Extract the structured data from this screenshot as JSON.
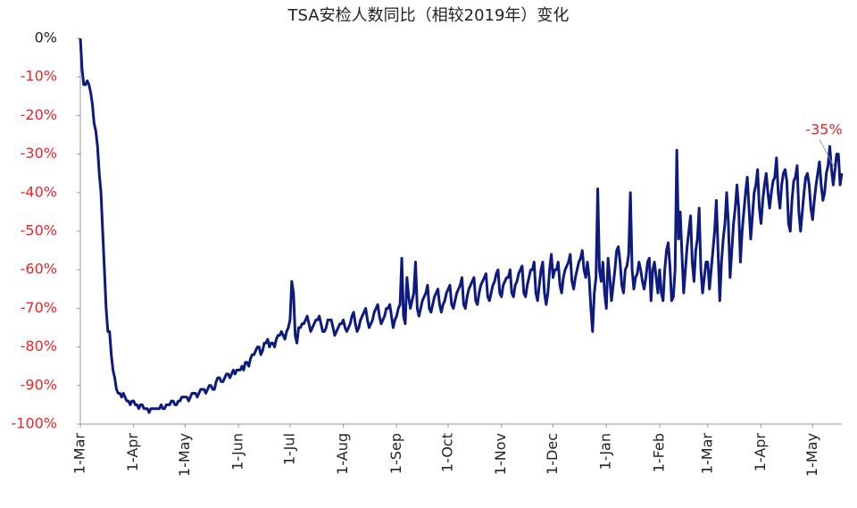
{
  "chart_data": {
    "type": "line",
    "title": "TSA安检人数同比（相较2019年）变化",
    "categories": [
      "1-Mar",
      null,
      null,
      null,
      null,
      null,
      null,
      null,
      null,
      null,
      null,
      null,
      null,
      null,
      null,
      null,
      null,
      null,
      null,
      null,
      null,
      null,
      null,
      null,
      null,
      null,
      null,
      null,
      null,
      null,
      null,
      "1-Apr",
      null,
      null,
      null,
      null,
      null,
      null,
      null,
      null,
      null,
      null,
      null,
      null,
      null,
      null,
      null,
      null,
      null,
      null,
      null,
      null,
      null,
      null,
      null,
      null,
      null,
      null,
      null,
      null,
      null,
      "1-May",
      null,
      null,
      null,
      null,
      null,
      null,
      null,
      null,
      null,
      null,
      null,
      null,
      null,
      null,
      null,
      null,
      null,
      null,
      null,
      null,
      null,
      null,
      null,
      null,
      null,
      null,
      null,
      null,
      null,
      null,
      "1-Jun",
      null,
      null,
      null,
      null,
      null,
      null,
      null,
      null,
      null,
      null,
      null,
      null,
      null,
      null,
      null,
      null,
      null,
      null,
      null,
      null,
      null,
      null,
      null,
      null,
      null,
      null,
      null,
      null,
      null,
      "1-Jul",
      null,
      null,
      null,
      null,
      null,
      null,
      null,
      null,
      null,
      null,
      null,
      null,
      null,
      null,
      null,
      null,
      null,
      null,
      null,
      null,
      null,
      null,
      null,
      null,
      null,
      null,
      null,
      null,
      null,
      null,
      "1-Aug",
      null,
      null,
      null,
      null,
      null,
      null,
      null,
      null,
      null,
      null,
      null,
      null,
      null,
      null,
      null,
      null,
      null,
      null,
      null,
      null,
      null,
      null,
      null,
      null,
      null,
      null,
      null,
      null,
      null,
      null,
      "1-Sep",
      null,
      null,
      null,
      null,
      null,
      null,
      null,
      null,
      null,
      null,
      null,
      null,
      null,
      null,
      null,
      null,
      null,
      null,
      null,
      null,
      null,
      null,
      null,
      null,
      null,
      null,
      null,
      null,
      null,
      "1-Oct",
      null,
      null,
      null,
      null,
      null,
      null,
      null,
      null,
      null,
      null,
      null,
      null,
      null,
      null,
      null,
      null,
      null,
      null,
      null,
      null,
      null,
      null,
      null,
      null,
      null,
      null,
      null,
      null,
      null,
      null,
      "1-Nov",
      null,
      null,
      null,
      null,
      null,
      null,
      null,
      null,
      null,
      null,
      null,
      null,
      null,
      null,
      null,
      null,
      null,
      null,
      null,
      null,
      null,
      null,
      null,
      null,
      null,
      null,
      null,
      null,
      null,
      "1-Dec",
      null,
      null,
      null,
      null,
      null,
      null,
      null,
      null,
      null,
      null,
      null,
      null,
      null,
      null,
      null,
      null,
      null,
      null,
      null,
      null,
      null,
      null,
      null,
      null,
      null,
      null,
      null,
      null,
      null,
      null,
      "1-Jan",
      null,
      null,
      null,
      null,
      null,
      null,
      null,
      null,
      null,
      null,
      null,
      null,
      null,
      null,
      null,
      null,
      null,
      null,
      null,
      null,
      null,
      null,
      null,
      null,
      null,
      null,
      null,
      null,
      null,
      null,
      "1-Feb",
      null,
      null,
      null,
      null,
      null,
      null,
      null,
      null,
      null,
      null,
      null,
      null,
      null,
      null,
      null,
      null,
      null,
      null,
      null,
      null,
      null,
      null,
      null,
      null,
      null,
      null,
      null,
      "1-Mar",
      null,
      null,
      null,
      null,
      null,
      null,
      null,
      null,
      null,
      null,
      null,
      null,
      null,
      null,
      null,
      null,
      null,
      null,
      null,
      null,
      null,
      null,
      null,
      null,
      null,
      null,
      null,
      null,
      null,
      null,
      "1-Apr",
      null,
      null,
      null,
      null,
      null,
      null,
      null,
      null,
      null,
      null,
      null,
      null,
      null,
      null,
      null,
      null,
      null,
      null,
      null,
      null,
      null,
      null,
      null,
      null,
      null,
      null,
      null,
      null,
      null,
      "1-May",
      null,
      null,
      null,
      null,
      null,
      null,
      null,
      null,
      null,
      null,
      null,
      null,
      null,
      null,
      null,
      null,
      null
    ],
    "series": [
      {
        "color": "#0d1a7e",
        "values": [
          0,
          -8,
          -12,
          -12,
          -11,
          -12,
          -14,
          -17,
          -22,
          -24,
          -28,
          -35,
          -40,
          -50,
          -60,
          -70,
          -76,
          -76,
          -82,
          -86,
          -88,
          -91,
          -92,
          -92,
          -93,
          -92,
          -93,
          -94,
          -94,
          -95,
          -94,
          -94,
          -95,
          -95,
          -96,
          -95,
          -95,
          -96,
          -96,
          -96,
          -97,
          -96,
          -96,
          -96,
          -96,
          -96,
          -96,
          -95,
          -96,
          -96,
          -95,
          -95,
          -95,
          -94,
          -94,
          -95,
          -95,
          -94,
          -94,
          -93,
          -93,
          -93,
          -93,
          -94,
          -93,
          -92,
          -92,
          -92,
          -93,
          -92,
          -91,
          -91,
          -91,
          -92,
          -91,
          -90,
          -90,
          -91,
          -91,
          -89,
          -88,
          -88,
          -89,
          -89,
          -88,
          -87,
          -87,
          -88,
          -87,
          -86,
          -87,
          -86,
          -86,
          -86,
          -85,
          -86,
          -84,
          -84,
          -85,
          -83,
          -82,
          -82,
          -81,
          -80,
          -80,
          -82,
          -81,
          -79,
          -79,
          -78,
          -80,
          -79,
          -79,
          -80,
          -78,
          -77,
          -77,
          -76,
          -77,
          -78,
          -76,
          -75,
          -73,
          -63,
          -66,
          -77,
          -79,
          -75,
          -75,
          -74,
          -74,
          -73,
          -72,
          -74,
          -76,
          -75,
          -74,
          -73,
          -73,
          -72,
          -74,
          -76,
          -76,
          -75,
          -73,
          -73,
          -73,
          -75,
          -77,
          -76,
          -75,
          -74,
          -74,
          -73,
          -75,
          -76,
          -75,
          -74,
          -72,
          -71,
          -74,
          -76,
          -75,
          -73,
          -72,
          -71,
          -70,
          -73,
          -75,
          -74,
          -73,
          -71,
          -70,
          -69,
          -72,
          -74,
          -73,
          -72,
          -70,
          -70,
          -69,
          -72,
          -75,
          -73,
          -72,
          -70,
          -69,
          -57,
          -72,
          -74,
          -62,
          -67,
          -70,
          -68,
          -66,
          -58,
          -70,
          -72,
          -70,
          -68,
          -67,
          -66,
          -64,
          -70,
          -71,
          -69,
          -67,
          -66,
          -65,
          -69,
          -71,
          -69,
          -68,
          -66,
          -65,
          -64,
          -69,
          -70,
          -68,
          -66,
          -65,
          -64,
          -62,
          -69,
          -70,
          -67,
          -65,
          -64,
          -63,
          -62,
          -68,
          -69,
          -66,
          -64,
          -63,
          -62,
          -61,
          -67,
          -68,
          -66,
          -64,
          -63,
          -61,
          -60,
          -66,
          -67,
          -64,
          -63,
          -62,
          -62,
          -60,
          -66,
          -67,
          -64,
          -63,
          -61,
          -60,
          -59,
          -66,
          -67,
          -64,
          -62,
          -60,
          -60,
          -58,
          -66,
          -68,
          -64,
          -60,
          -58,
          -66,
          -69,
          -66,
          -60,
          -56,
          -62,
          -60,
          -60,
          -58,
          -64,
          -66,
          -62,
          -60,
          -59,
          -58,
          -56,
          -63,
          -65,
          -62,
          -60,
          -58,
          -57,
          -55,
          -60,
          -62,
          -58,
          -62,
          -70,
          -76,
          -66,
          -62,
          -39,
          -60,
          -63,
          -58,
          -66,
          -70,
          -57,
          -62,
          -68,
          -64,
          -60,
          -55,
          -54,
          -58,
          -64,
          -66,
          -60,
          -59,
          -56,
          -40,
          -60,
          -65,
          -62,
          -61,
          -58,
          -60,
          -63,
          -65,
          -62,
          -58,
          -57,
          -68,
          -60,
          -58,
          -62,
          -66,
          -60,
          -66,
          -68,
          -60,
          -55,
          -53,
          -59,
          -68,
          -67,
          -60,
          -29,
          -52,
          -45,
          -56,
          -66,
          -60,
          -54,
          -50,
          -46,
          -58,
          -63,
          -55,
          -52,
          -44,
          -60,
          -66,
          -62,
          -58,
          -58,
          -65,
          -60,
          -55,
          -50,
          -42,
          -55,
          -68,
          -58,
          -52,
          -48,
          -40,
          -48,
          -62,
          -55,
          -48,
          -44,
          -38,
          -44,
          -58,
          -50,
          -45,
          -40,
          -36,
          -44,
          -52,
          -46,
          -40,
          -38,
          -34,
          -44,
          -48,
          -42,
          -38,
          -35,
          -40,
          -44,
          -40,
          -37,
          -36,
          -31,
          -40,
          -44,
          -38,
          -35,
          -34,
          -37,
          -48,
          -50,
          -42,
          -37,
          -36,
          -33,
          -45,
          -50,
          -45,
          -40,
          -36,
          -35,
          -38,
          -44,
          -47,
          -42,
          -38,
          -35,
          -32,
          -38,
          -42,
          -40,
          -35,
          -33,
          -28,
          -34,
          -38,
          -34,
          -30,
          -30,
          -38,
          -35
        ]
      }
    ],
    "annotation": "-35%",
    "ylim": [
      -100,
      0
    ],
    "yticks": [
      {
        "value": 0,
        "label": "0%"
      },
      {
        "value": -10,
        "label": "-10%"
      },
      {
        "value": -20,
        "label": "-20%"
      },
      {
        "value": -30,
        "label": "-30%"
      },
      {
        "value": -40,
        "label": "-40%"
      },
      {
        "value": -50,
        "label": "-50%"
      },
      {
        "value": -60,
        "label": "-60%"
      },
      {
        "value": -70,
        "label": "-70%"
      },
      {
        "value": -80,
        "label": "-80%"
      },
      {
        "value": -90,
        "label": "-90%"
      },
      {
        "value": -100,
        "label": "-100%"
      }
    ],
    "grid": false
  }
}
